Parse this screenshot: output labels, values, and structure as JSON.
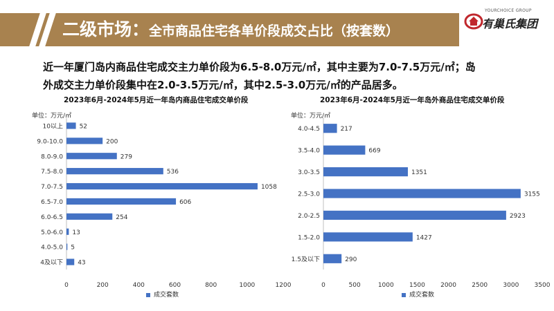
{
  "header": {
    "title_main": "二级市场：",
    "title_sub": "全市商品住宅各单价段成交占比（按套数）",
    "accent_color": "#a8824f"
  },
  "logo": {
    "en": "YOURCHOICE GROUP",
    "cn": "有巢氏集团",
    "icon": "house-ring-logo",
    "color": "#c0282d"
  },
  "summary": {
    "line1": "近一年厦门岛内商品住宅成交主力单价段为6.5-8.0万元/㎡，其中主要为7.0-7.5万元/㎡；岛",
    "line2": "外成交主力单价段集中在2.0-3.5万元/㎡，其中2.5-3.0万元/㎡的产品居多。"
  },
  "chart_data": [
    {
      "type": "bar",
      "orientation": "horizontal",
      "title": "2023年6月-2024年5月近一年岛内商品住宅成交单价段",
      "unit_label": "单位：万元/㎡",
      "categories": [
        "10以上",
        "9.0-10.0",
        "8.0-9.0",
        "7.5-8.0",
        "7.0-7.5",
        "6.5-7.0",
        "6.0-6.5",
        "5.0-6.0",
        "4.0-5.0",
        "4及以下"
      ],
      "series": [
        {
          "name": "成交套数",
          "values": [
            52,
            200,
            279,
            536,
            1058,
            606,
            254,
            13,
            5,
            43
          ]
        }
      ],
      "xlim": [
        0,
        1200
      ],
      "xticks": [
        0,
        200,
        400,
        600,
        800,
        1000,
        1200
      ],
      "grid": false,
      "legend": "bottom",
      "color": "#4472c4"
    },
    {
      "type": "bar",
      "orientation": "horizontal",
      "title": "2023年6月-2024年5月近一年岛外商品住宅成交单价段",
      "unit_label": "单位：万元/㎡",
      "categories": [
        "4.0-4.5",
        "3.5-4.0",
        "3.0-3.5",
        "2.5-3.0",
        "2.0-2.5",
        "1.5-2.0",
        "1.5及以下"
      ],
      "series": [
        {
          "name": "成交套数",
          "values": [
            217,
            669,
            1351,
            3155,
            2923,
            1427,
            290
          ]
        }
      ],
      "xlim": [
        0,
        3500
      ],
      "xticks": [
        0,
        500,
        1000,
        1500,
        2000,
        2500,
        3000,
        3500
      ],
      "grid": false,
      "legend": "bottom",
      "color": "#4472c4"
    }
  ]
}
